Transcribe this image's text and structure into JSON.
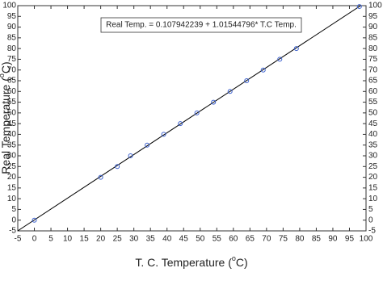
{
  "chart_data": {
    "type": "scatter",
    "x_label": [
      "T. C. Temperature (",
      "o",
      "C)"
    ],
    "y_label": [
      "Real Temperature (",
      "o",
      "C)"
    ],
    "annotation": "Real Temp. = 0.107942239 + 1.01544796* T.C Temp.",
    "fit": {
      "intercept": 0.107942239,
      "slope": 1.01544796,
      "color": "#000000"
    },
    "series": [
      {
        "color": "#3a5fcd",
        "x": [
          0,
          20,
          25,
          29,
          34,
          39,
          44,
          49,
          54,
          59,
          64,
          69,
          74,
          79,
          98
        ],
        "values": [
          0,
          20,
          25,
          30,
          35,
          40,
          45,
          50,
          55,
          60,
          65,
          70,
          75,
          80,
          99.6
        ]
      }
    ],
    "xlim": [
      -5,
      100
    ],
    "xticks": [
      -5,
      0,
      5,
      10,
      15,
      20,
      25,
      30,
      35,
      40,
      45,
      50,
      55,
      60,
      65,
      70,
      75,
      80,
      85,
      90,
      95,
      100
    ],
    "ylim": [
      -5,
      100
    ],
    "yticks": [
      -5,
      0,
      5,
      10,
      15,
      20,
      25,
      30,
      35,
      40,
      45,
      50,
      55,
      60,
      65,
      70,
      75,
      80,
      85,
      90,
      95,
      100
    ],
    "right_axis_labels": true,
    "grid": false
  }
}
